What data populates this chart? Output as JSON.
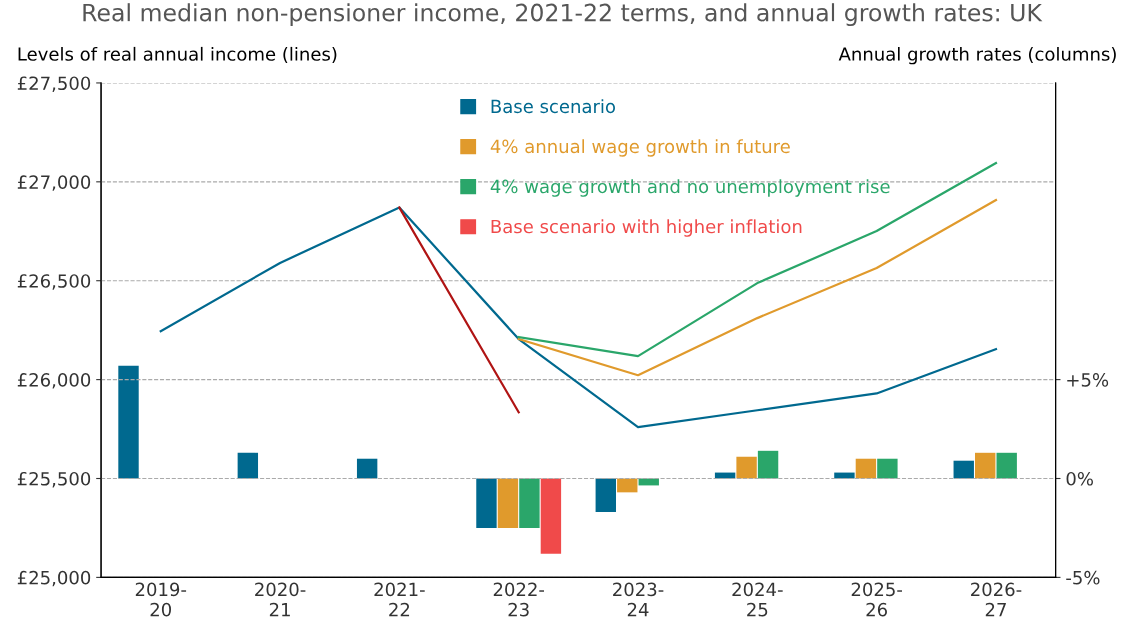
{
  "chart_data": {
    "type": "bar",
    "title": "Real median non-pensioner income, 2021-22 terms, and annual growth rates: UK",
    "ylabel": "Levels of real annual income (lines)",
    "y2label": "Annual growth rates (columns)",
    "categories": [
      "2019-\n20",
      "2020-\n21",
      "2021-\n22",
      "2022-\n23",
      "2023-\n24",
      "2024-\n25",
      "2025-\n26",
      "2026-\n27"
    ],
    "series": [
      {
        "name": "Base scenario",
        "color": "#00698f",
        "axis": "y2",
        "values": [
          5.7,
          1.3,
          1.0,
          -2.5,
          -1.7,
          0.3,
          0.3,
          0.9
        ]
      },
      {
        "name": "4% annual wage growth in future",
        "color": "#e09a2c",
        "axis": "y2",
        "values": [
          null,
          null,
          null,
          -2.5,
          -0.7,
          1.1,
          1.0,
          1.3
        ]
      },
      {
        "name": "4% wage growth and no unemployment rise",
        "color": "#2aa66a",
        "axis": "y2",
        "values": [
          null,
          null,
          null,
          -2.5,
          -0.35,
          1.4,
          1.0,
          1.3
        ]
      },
      {
        "name": "Base scenario with higher inflation",
        "color": "#f04a4a",
        "axis": "y2",
        "values": [
          null,
          null,
          null,
          -3.8,
          null,
          null,
          null,
          null
        ]
      },
      {
        "type": "line",
        "color": "#00698f",
        "values": [
          26245,
          26590,
          26870,
          26205,
          25760,
          25845,
          25930,
          26154
        ]
      },
      {
        "type": "line",
        "color": "#e09a2c",
        "values": [
          null,
          null,
          null,
          26205,
          26022,
          26311,
          26564,
          26908
        ]
      },
      {
        "type": "line",
        "color": "#2aa66a",
        "values": [
          null,
          null,
          null,
          26215,
          26119,
          26488,
          26751,
          27095
        ]
      },
      {
        "type": "line",
        "color": "#b01414",
        "values": [
          null,
          null,
          26870,
          25835,
          null,
          null,
          null,
          null
        ]
      }
    ],
    "ylim": [
      25000,
      27500
    ],
    "yticks": [
      {
        "value": 25000,
        "label": "£25,000"
      },
      {
        "value": 25500,
        "label": "£25,500"
      },
      {
        "value": 26000,
        "label": "£26,000"
      },
      {
        "value": 26500,
        "label": "£26,500"
      },
      {
        "value": 27000,
        "label": "£27,000"
      },
      {
        "value": 27500,
        "label": "£27,500"
      }
    ],
    "y2lim": [
      -5,
      20
    ],
    "y2ticks": [
      {
        "value": -5,
        "label": "-5%"
      },
      {
        "value": 0,
        "label": "0%"
      },
      {
        "value": 5,
        "label": "+5%"
      }
    ],
    "grid": "y",
    "legend": "top",
    "marker": "none",
    "line_style": "solid"
  }
}
